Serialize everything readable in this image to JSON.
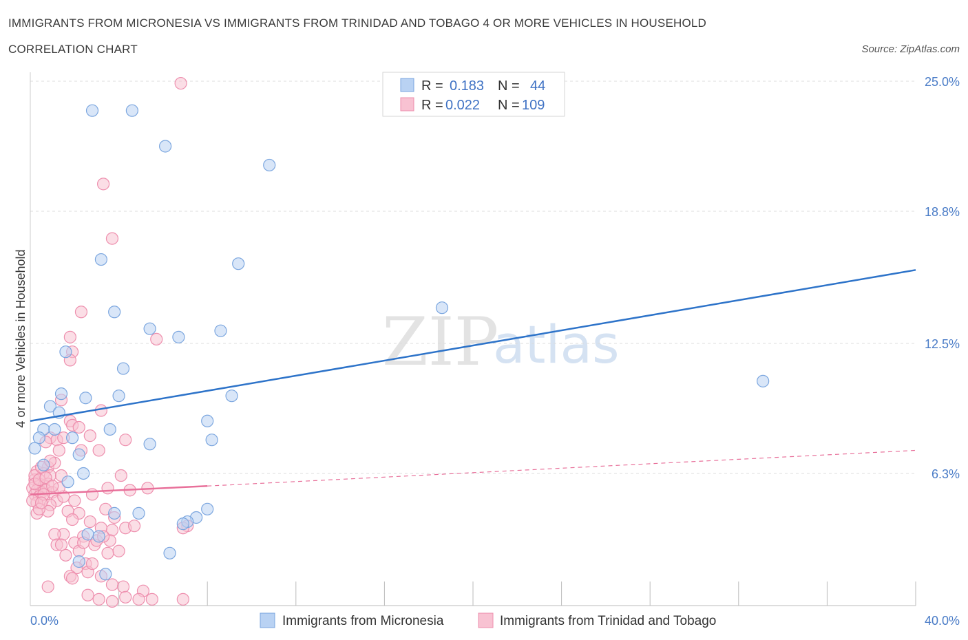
{
  "title_line1": "IMMIGRANTS FROM MICRONESIA VS IMMIGRANTS FROM TRINIDAD AND TOBAGO 4 OR MORE VEHICLES IN HOUSEHOLD",
  "title_line2": "CORRELATION CHART",
  "source": "Source: ZipAtlas.com",
  "watermark": {
    "zip": "ZIP",
    "atlas": "atlas"
  },
  "legend": {
    "r_label": "R =",
    "n_label": "N =",
    "rows": [
      {
        "r": "0.183",
        "n": "44"
      },
      {
        "r": "0.022",
        "n": "109"
      }
    ]
  },
  "bottom_legend": [
    "Immigrants from Micronesia",
    "Immigrants from Trinidad and Tobago"
  ],
  "chart_data": {
    "type": "scatter",
    "ylabel": "4 or more Vehicles in Household",
    "xlim": [
      0,
      40
    ],
    "ylim": [
      0,
      25
    ],
    "x_tick_labels": [
      "0.0%",
      "40.0%"
    ],
    "y_ticks": [
      6.3,
      12.5,
      18.8,
      25.0
    ],
    "y_tick_labels": [
      "6.3%",
      "12.5%",
      "18.8%",
      "25.0%"
    ],
    "colors": {
      "micronesia_fill": "#b9d2f3",
      "micronesia_stroke": "#7ba6df",
      "micronesia_line": "#2d73c9",
      "trinidad_fill": "#f8c2d2",
      "trinidad_stroke": "#ee8fae",
      "trinidad_line": "#e8709a"
    },
    "series": [
      {
        "name": "Immigrants from Micronesia",
        "trend": {
          "x": [
            0,
            40
          ],
          "y": [
            8.8,
            16.0
          ]
        },
        "points": [
          [
            2.8,
            23.6
          ],
          [
            4.6,
            23.6
          ],
          [
            6.1,
            21.9
          ],
          [
            10.8,
            21.0
          ],
          [
            3.2,
            16.5
          ],
          [
            9.4,
            16.3
          ],
          [
            18.6,
            14.2
          ],
          [
            3.8,
            14.0
          ],
          [
            5.4,
            13.2
          ],
          [
            6.7,
            12.8
          ],
          [
            8.6,
            13.1
          ],
          [
            1.6,
            12.1
          ],
          [
            4.2,
            11.3
          ],
          [
            1.4,
            10.1
          ],
          [
            2.5,
            9.9
          ],
          [
            4.0,
            10.0
          ],
          [
            9.1,
            10.0
          ],
          [
            33.1,
            10.7
          ],
          [
            0.9,
            9.5
          ],
          [
            1.3,
            9.2
          ],
          [
            8.0,
            8.8
          ],
          [
            0.6,
            8.4
          ],
          [
            1.1,
            8.4
          ],
          [
            3.6,
            8.4
          ],
          [
            0.4,
            8.0
          ],
          [
            1.9,
            8.0
          ],
          [
            8.2,
            7.9
          ],
          [
            5.4,
            7.7
          ],
          [
            0.2,
            7.5
          ],
          [
            2.2,
            7.2
          ],
          [
            0.6,
            6.7
          ],
          [
            2.4,
            6.3
          ],
          [
            1.7,
            5.9
          ],
          [
            3.8,
            4.4
          ],
          [
            4.9,
            4.4
          ],
          [
            8.0,
            4.6
          ],
          [
            7.5,
            4.2
          ],
          [
            7.1,
            4.0
          ],
          [
            6.9,
            3.9
          ],
          [
            2.6,
            3.4
          ],
          [
            3.1,
            3.3
          ],
          [
            6.3,
            2.5
          ],
          [
            2.2,
            2.1
          ],
          [
            3.4,
            1.5
          ]
        ]
      },
      {
        "name": "Immigrants from Trinidad and Tobago",
        "trend": {
          "x": [
            0,
            8
          ],
          "y": [
            5.3,
            5.7
          ]
        },
        "trend_ext": {
          "x": [
            8,
            40
          ],
          "y": [
            5.7,
            7.4
          ]
        },
        "points": [
          [
            6.8,
            24.9
          ],
          [
            3.3,
            20.1
          ],
          [
            3.7,
            17.5
          ],
          [
            2.3,
            14.0
          ],
          [
            1.8,
            12.8
          ],
          [
            5.7,
            12.7
          ],
          [
            1.9,
            12.1
          ],
          [
            1.8,
            11.7
          ],
          [
            1.4,
            9.8
          ],
          [
            3.2,
            9.3
          ],
          [
            1.8,
            8.8
          ],
          [
            1.9,
            8.6
          ],
          [
            0.9,
            8.0
          ],
          [
            1.2,
            7.9
          ],
          [
            0.7,
            7.8
          ],
          [
            1.5,
            8.0
          ],
          [
            2.7,
            8.1
          ],
          [
            4.3,
            7.9
          ],
          [
            2.3,
            7.4
          ],
          [
            3.1,
            7.4
          ],
          [
            1.3,
            7.4
          ],
          [
            2.2,
            8.5
          ],
          [
            0.8,
            6.6
          ],
          [
            1.1,
            6.8
          ],
          [
            0.3,
            6.4
          ],
          [
            0.6,
            6.3
          ],
          [
            0.9,
            6.2
          ],
          [
            1.4,
            6.2
          ],
          [
            0.2,
            6.0
          ],
          [
            0.4,
            5.8
          ],
          [
            0.6,
            5.7
          ],
          [
            0.8,
            5.8
          ],
          [
            0.1,
            5.6
          ],
          [
            0.3,
            5.5
          ],
          [
            0.5,
            5.4
          ],
          [
            0.7,
            5.5
          ],
          [
            0.2,
            5.3
          ],
          [
            0.4,
            5.2
          ],
          [
            0.6,
            5.1
          ],
          [
            1.0,
            5.4
          ],
          [
            1.2,
            5.0
          ],
          [
            0.3,
            4.9
          ],
          [
            0.9,
            4.8
          ],
          [
            1.5,
            5.2
          ],
          [
            2.0,
            5.0
          ],
          [
            3.5,
            5.6
          ],
          [
            4.1,
            6.2
          ],
          [
            5.3,
            5.6
          ],
          [
            1.7,
            4.5
          ],
          [
            2.2,
            4.4
          ],
          [
            3.4,
            4.6
          ],
          [
            1.9,
            4.1
          ],
          [
            0.8,
            4.5
          ],
          [
            0.3,
            4.4
          ],
          [
            2.7,
            4.0
          ],
          [
            3.8,
            4.2
          ],
          [
            3.7,
            3.6
          ],
          [
            4.3,
            3.7
          ],
          [
            4.7,
            3.8
          ],
          [
            1.5,
            3.4
          ],
          [
            2.4,
            3.3
          ],
          [
            1.1,
            3.4
          ],
          [
            2.0,
            3.0
          ],
          [
            3.2,
            3.7
          ],
          [
            3.6,
            3.1
          ],
          [
            2.9,
            2.9
          ],
          [
            3.0,
            3.1
          ],
          [
            1.2,
            2.9
          ],
          [
            2.2,
            2.6
          ],
          [
            3.5,
            2.5
          ],
          [
            4.0,
            2.6
          ],
          [
            1.6,
            2.4
          ],
          [
            2.5,
            2.0
          ],
          [
            2.1,
            1.8
          ],
          [
            1.8,
            1.4
          ],
          [
            2.6,
            1.6
          ],
          [
            3.7,
            1.0
          ],
          [
            4.2,
            0.9
          ],
          [
            5.1,
            0.7
          ],
          [
            5.5,
            0.3
          ],
          [
            4.3,
            0.4
          ],
          [
            3.1,
            0.3
          ],
          [
            2.6,
            0.5
          ],
          [
            6.9,
            0.3
          ],
          [
            3.7,
            0.2
          ],
          [
            4.9,
            0.3
          ],
          [
            0.8,
            0.9
          ],
          [
            1.9,
            1.3
          ],
          [
            0.2,
            6.2
          ],
          [
            0.5,
            6.6
          ],
          [
            0.9,
            6.9
          ],
          [
            0.4,
            4.6
          ],
          [
            7.1,
            3.8
          ],
          [
            6.9,
            3.7
          ],
          [
            4.5,
            5.5
          ],
          [
            2.8,
            5.3
          ],
          [
            1.3,
            5.6
          ],
          [
            0.6,
            5.3
          ],
          [
            0.2,
            5.8
          ],
          [
            0.4,
            6.0
          ],
          [
            0.7,
            6.1
          ],
          [
            1.0,
            5.7
          ],
          [
            0.1,
            5.0
          ],
          [
            0.5,
            4.9
          ],
          [
            2.4,
            3.0
          ],
          [
            3.3,
            3.3
          ],
          [
            1.4,
            2.9
          ],
          [
            2.8,
            2.0
          ],
          [
            3.2,
            1.4
          ]
        ]
      }
    ]
  }
}
